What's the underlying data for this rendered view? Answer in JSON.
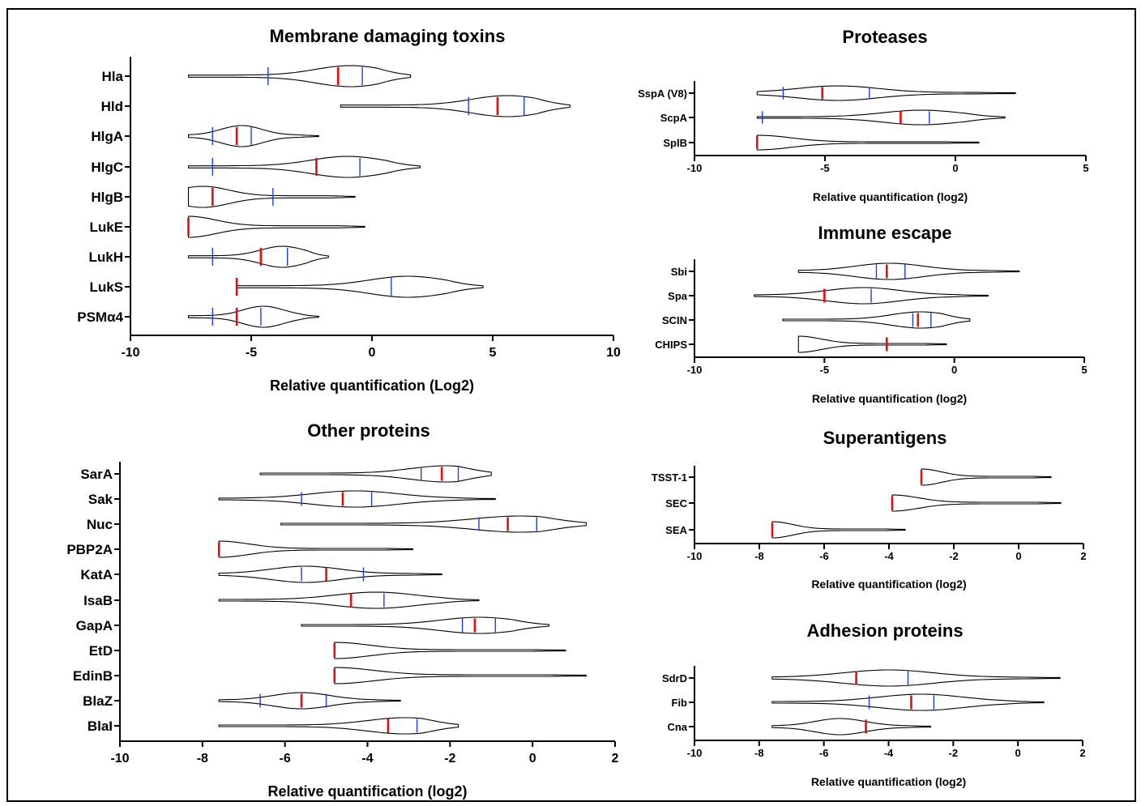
{
  "chart_data": [
    {
      "type": "violin",
      "title": "Membrane damaging toxins",
      "xlabel": "Relative quantification (Log2)",
      "xlim": [
        -10,
        10
      ],
      "xticks": [
        "-10",
        "-5",
        "0",
        "5",
        "10"
      ],
      "rows": [
        {
          "label": "Hla",
          "min": -7.6,
          "max": 1.6,
          "q1": -4.3,
          "median": -1.4,
          "q3": -0.4,
          "peak": -0.9
        },
        {
          "label": "Hld",
          "min": -1.3,
          "max": 8.2,
          "q1": 4.0,
          "median": 5.2,
          "q3": 6.3,
          "peak": 5.6
        },
        {
          "label": "HlgA",
          "min": -7.6,
          "max": -2.2,
          "q1": -6.6,
          "median": -5.6,
          "q3": -5.0,
          "peak": -5.4
        },
        {
          "label": "HlgC",
          "min": -7.6,
          "max": 2.0,
          "q1": -6.6,
          "median": -2.3,
          "q3": -0.5,
          "peak": -1.0
        },
        {
          "label": "HlgB",
          "min": -7.6,
          "max": -0.7,
          "q1": -6.6,
          "median": -6.6,
          "q3": -4.1,
          "peak": -7.0
        },
        {
          "label": "LukE",
          "min": -7.6,
          "max": -0.3,
          "q1": -7.6,
          "median": -7.6,
          "q3": -7.6,
          "peak": -7.6
        },
        {
          "label": "LukH",
          "min": -7.6,
          "max": -1.8,
          "q1": -6.6,
          "median": -4.6,
          "q3": -3.5,
          "peak": -3.7
        },
        {
          "label": "LukS",
          "min": -5.6,
          "max": 4.6,
          "q1": -5.6,
          "median": -5.6,
          "q3": 0.8,
          "peak": 1.5
        },
        {
          "label": "PSMα4",
          "min": -7.6,
          "max": -2.2,
          "q1": -6.6,
          "median": -5.6,
          "q3": -4.6,
          "peak": -4.5
        }
      ]
    },
    {
      "type": "violin",
      "title": "Proteases",
      "xlabel": "Relative quantification (log2)",
      "xlim": [
        -10,
        5
      ],
      "xticks": [
        "-10",
        "-5",
        "0",
        "5"
      ],
      "rows": [
        {
          "label": "SspA (V8)",
          "min": -7.6,
          "max": 2.3,
          "q1": -6.6,
          "median": -5.1,
          "q3": -3.3,
          "peak": -4.5
        },
        {
          "label": "ScpA",
          "min": -7.6,
          "max": 1.9,
          "q1": -7.4,
          "median": -2.1,
          "q3": -1.0,
          "peak": -1.3
        },
        {
          "label": "SplB",
          "min": -7.6,
          "max": 0.9,
          "q1": -7.6,
          "median": -7.6,
          "q3": -7.6,
          "peak": -7.6
        }
      ]
    },
    {
      "type": "violin",
      "title": "Immune escape",
      "xlabel": "Relative quantification (log2)",
      "xlim": [
        -10,
        5
      ],
      "xticks": [
        "-10",
        "-5",
        "0",
        "5"
      ],
      "rows": [
        {
          "label": "Sbi",
          "min": -6.0,
          "max": 2.5,
          "q1": -3.0,
          "median": -2.6,
          "q3": -1.9,
          "peak": -2.5
        },
        {
          "label": "Spa",
          "min": -7.7,
          "max": 1.3,
          "q1": -5.0,
          "median": -5.0,
          "q3": -3.2,
          "peak": -3.5
        },
        {
          "label": "SCIN",
          "min": -6.6,
          "max": 0.6,
          "q1": -1.6,
          "median": -1.4,
          "q3": -0.9,
          "peak": -1.3
        },
        {
          "label": "CHIPS",
          "min": -6.0,
          "max": -0.3,
          "q1": -2.6,
          "median": -2.6,
          "q3": -2.6,
          "peak": -6.0
        }
      ]
    },
    {
      "type": "violin",
      "title": "Superantigens",
      "xlabel": "Relative quantification (log2)",
      "xlim": [
        -10,
        2
      ],
      "xticks": [
        "-10",
        "-8",
        "-6",
        "-4",
        "-2",
        "0",
        "2"
      ],
      "rows": [
        {
          "label": "TSST-1",
          "min": -3.0,
          "max": 1.0,
          "q1": -3.0,
          "median": -3.0,
          "q3": -3.0,
          "peak": -3.0
        },
        {
          "label": "SEC",
          "min": -3.9,
          "max": 1.3,
          "q1": -3.9,
          "median": -3.9,
          "q3": -3.9,
          "peak": -3.9
        },
        {
          "label": "SEA",
          "min": -7.6,
          "max": -3.5,
          "q1": -7.6,
          "median": -7.6,
          "q3": -7.6,
          "peak": -7.6
        }
      ]
    },
    {
      "type": "violin",
      "title": "Adhesion proteins",
      "xlabel": "Relative quantification (log2)",
      "xlim": [
        -10,
        2
      ],
      "xticks": [
        "-10",
        "-8",
        "-6",
        "-4",
        "-2",
        "0",
        "2"
      ],
      "rows": [
        {
          "label": "SdrD",
          "min": -7.6,
          "max": 1.3,
          "q1": -5.0,
          "median": -5.0,
          "q3": -3.4,
          "peak": -4.0
        },
        {
          "label": "Fib",
          "min": -7.6,
          "max": 0.8,
          "q1": -4.6,
          "median": -3.3,
          "q3": -2.6,
          "peak": -3.0
        },
        {
          "label": "Cna",
          "min": -7.6,
          "max": -2.7,
          "q1": -4.7,
          "median": -4.7,
          "q3": -4.7,
          "peak": -5.5
        }
      ]
    },
    {
      "type": "violin",
      "title": "Other proteins",
      "xlabel": "Relative quantification (log2)",
      "xlim": [
        -10,
        2
      ],
      "xticks": [
        "-10",
        "-8",
        "-6",
        "-4",
        "-2",
        "0",
        "2"
      ],
      "rows": [
        {
          "label": "SarA",
          "min": -6.6,
          "max": -1.0,
          "q1": -2.7,
          "median": -2.2,
          "q3": -1.8,
          "peak": -2.1
        },
        {
          "label": "Sak",
          "min": -7.6,
          "max": -0.9,
          "q1": -5.6,
          "median": -4.6,
          "q3": -3.9,
          "peak": -4.3
        },
        {
          "label": "Nuc",
          "min": -6.1,
          "max": 1.3,
          "q1": -1.3,
          "median": -0.6,
          "q3": 0.1,
          "peak": -0.3
        },
        {
          "label": "PBP2A",
          "min": -7.6,
          "max": -2.9,
          "q1": -7.6,
          "median": -7.6,
          "q3": -7.6,
          "peak": -7.6
        },
        {
          "label": "KatA",
          "min": -7.6,
          "max": -2.2,
          "q1": -5.6,
          "median": -5.0,
          "q3": -4.1,
          "peak": -5.5
        },
        {
          "label": "IsaB",
          "min": -7.6,
          "max": -1.3,
          "q1": -4.4,
          "median": -4.4,
          "q3": -3.6,
          "peak": -3.8
        },
        {
          "label": "GapA",
          "min": -5.6,
          "max": 0.4,
          "q1": -1.7,
          "median": -1.4,
          "q3": -0.9,
          "peak": -1.3
        },
        {
          "label": "EtD",
          "min": -4.8,
          "max": 0.8,
          "q1": -4.8,
          "median": -4.8,
          "q3": -4.8,
          "peak": -4.8
        },
        {
          "label": "EdinB",
          "min": -4.8,
          "max": 1.3,
          "q1": -4.8,
          "median": -4.8,
          "q3": -4.8,
          "peak": -4.8
        },
        {
          "label": "BlaZ",
          "min": -7.6,
          "max": -3.2,
          "q1": -6.6,
          "median": -5.6,
          "q3": -5.0,
          "peak": -5.6
        },
        {
          "label": "BlaI",
          "min": -7.6,
          "max": -1.8,
          "q1": -3.5,
          "median": -3.5,
          "q3": -2.8,
          "peak": -3.1
        }
      ]
    }
  ]
}
